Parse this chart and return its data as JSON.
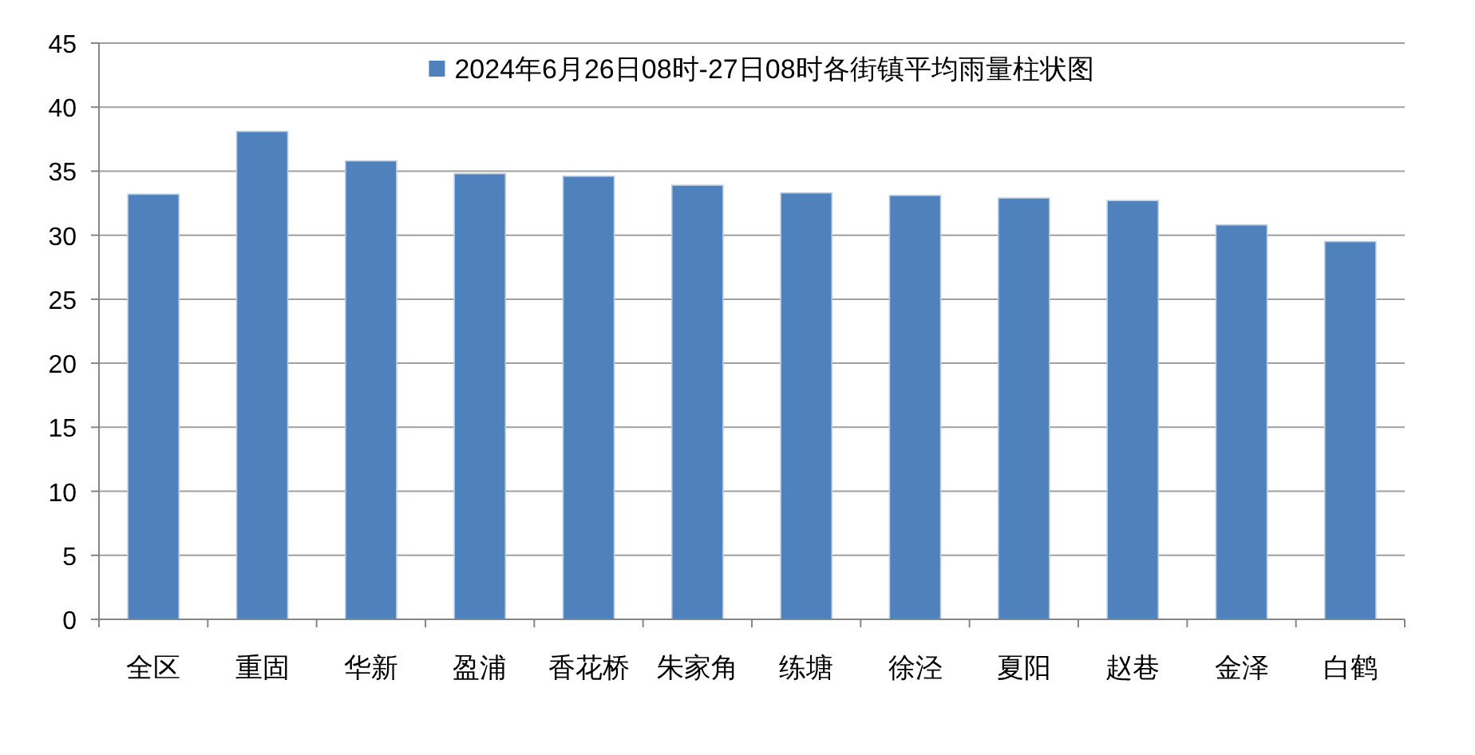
{
  "chart_data": {
    "type": "bar",
    "categories": [
      "全区",
      "重固",
      "华新",
      "盈浦",
      "香花桥",
      "朱家角",
      "练塘",
      "徐泾",
      "夏阳",
      "赵巷",
      "金泽",
      "白鹤"
    ],
    "series": [
      {
        "name": "2024年6月26日08时-27日08时各街镇平均雨量柱状图",
        "color": "#4f81bd",
        "values": [
          33.2,
          38.1,
          35.8,
          34.8,
          34.6,
          33.9,
          33.3,
          33.1,
          32.9,
          32.7,
          30.8,
          29.5
        ]
      }
    ],
    "ylim": [
      0,
      45
    ],
    "yticks": [
      0,
      5,
      10,
      15,
      20,
      25,
      30,
      35,
      40,
      45
    ],
    "grid": "y",
    "legend": "top"
  }
}
